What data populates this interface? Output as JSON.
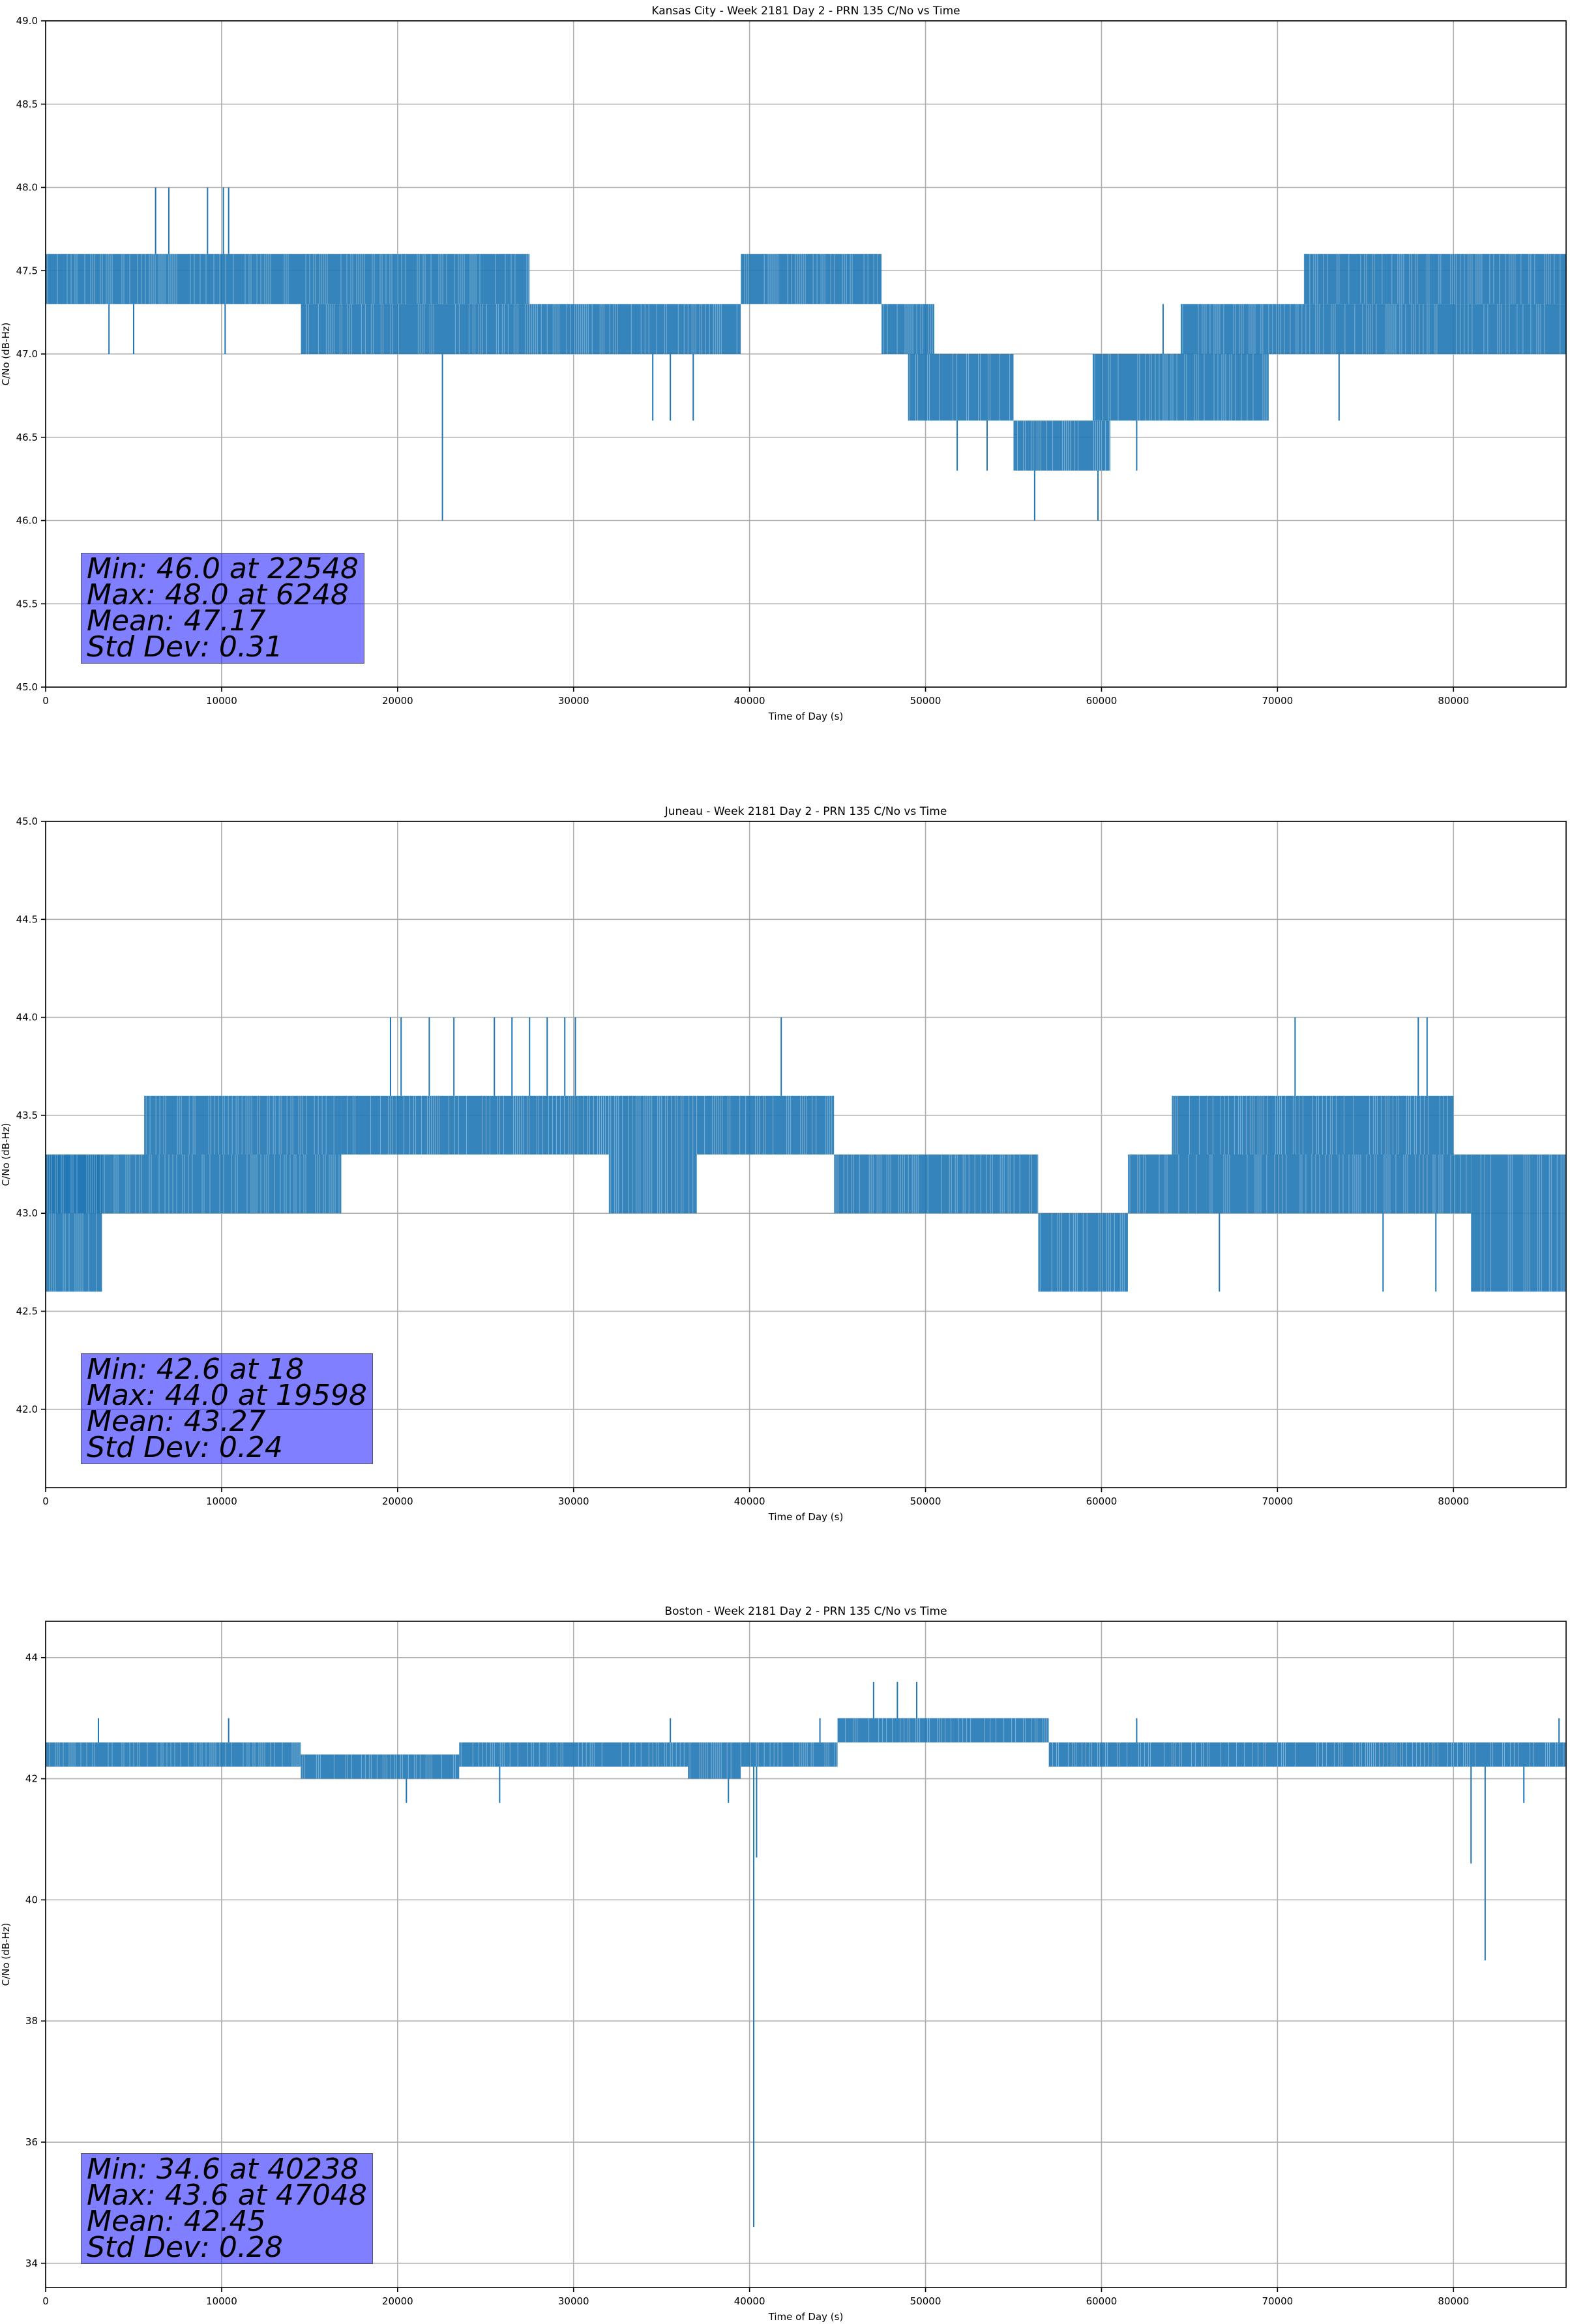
{
  "chart_data": [
    {
      "type": "line",
      "title": "Kansas City - Week 2181 Day 2 - PRN 135 C/No vs Time",
      "xlabel": "Time of Day (s)",
      "ylabel": "C/No (dB-Hz)",
      "xlim": [
        0,
        86400
      ],
      "ylim": [
        45.0,
        49.0
      ],
      "xticks": [
        0,
        10000,
        20000,
        30000,
        40000,
        50000,
        60000,
        70000,
        80000
      ],
      "yticks": [
        "45.0",
        "45.5",
        "46.0",
        "46.5",
        "47.0",
        "47.5",
        "48.0",
        "48.5",
        "49.0"
      ],
      "grid": true,
      "series_color": "#1f77b4",
      "bands": [
        {
          "x": [
            0,
            27500
          ],
          "low": 47.3,
          "high": 47.6
        },
        {
          "x": [
            14500,
            27500
          ],
          "low": 47.0,
          "high": 47.3
        },
        {
          "x": [
            27500,
            39500
          ],
          "low": 47.0,
          "high": 47.3
        },
        {
          "x": [
            39500,
            47500
          ],
          "low": 47.3,
          "high": 47.6
        },
        {
          "x": [
            47500,
            50500
          ],
          "low": 47.0,
          "high": 47.3
        },
        {
          "x": [
            49000,
            55000
          ],
          "low": 46.6,
          "high": 47.0
        },
        {
          "x": [
            55000,
            60500
          ],
          "low": 46.3,
          "high": 46.6
        },
        {
          "x": [
            59500,
            69500
          ],
          "low": 46.6,
          "high": 47.0
        },
        {
          "x": [
            64500,
            86400
          ],
          "low": 47.0,
          "high": 47.3
        },
        {
          "x": [
            71500,
            86400
          ],
          "low": 47.3,
          "high": 47.6
        }
      ],
      "spikes": [
        {
          "x": 6248,
          "y": 48.0
        },
        {
          "x": 7000,
          "y": 48.0
        },
        {
          "x": 9200,
          "y": 48.0
        },
        {
          "x": 10100,
          "y": 48.0
        },
        {
          "x": 10400,
          "y": 48.0
        },
        {
          "x": 3600,
          "y": 47.0
        },
        {
          "x": 5000,
          "y": 47.0
        },
        {
          "x": 10200,
          "y": 47.0
        },
        {
          "x": 22548,
          "y": 46.0
        },
        {
          "x": 34500,
          "y": 46.6
        },
        {
          "x": 35500,
          "y": 46.6
        },
        {
          "x": 36800,
          "y": 46.6
        },
        {
          "x": 51800,
          "y": 46.3
        },
        {
          "x": 53500,
          "y": 46.3
        },
        {
          "x": 56200,
          "y": 46.0
        },
        {
          "x": 59800,
          "y": 46.0
        },
        {
          "x": 62000,
          "y": 46.3
        },
        {
          "x": 63500,
          "y": 47.3
        },
        {
          "x": 73500,
          "y": 46.6
        }
      ],
      "stats": {
        "min": "Min: 46.0 at 22548",
        "max": "Max: 48.0 at 6248",
        "mean": "Mean: 47.17",
        "std": "Std Dev: 0.31"
      }
    },
    {
      "type": "line",
      "title": "Juneau - Week 2181 Day 2 - PRN 135 C/No vs Time",
      "xlabel": "Time of Day (s)",
      "ylabel": "C/No (dB-Hz)",
      "xlim": [
        0,
        86400
      ],
      "ylim": [
        41.6,
        45.0
      ],
      "xticks": [
        0,
        10000,
        20000,
        30000,
        40000,
        50000,
        60000,
        70000,
        80000
      ],
      "yticks": [
        "42.0",
        "42.5",
        "43.0",
        "43.5",
        "44.0",
        "44.5",
        "45.0"
      ],
      "grid": true,
      "series_color": "#1f77b4",
      "bands": [
        {
          "x": [
            0,
            3200
          ],
          "low": 42.6,
          "high": 43.3
        },
        {
          "x": [
            0,
            16800
          ],
          "low": 43.0,
          "high": 43.3
        },
        {
          "x": [
            5600,
            16800
          ],
          "low": 43.3,
          "high": 43.6
        },
        {
          "x": [
            16800,
            32000
          ],
          "low": 43.3,
          "high": 43.6
        },
        {
          "x": [
            32000,
            37000
          ],
          "low": 43.0,
          "high": 43.6
        },
        {
          "x": [
            37000,
            44800
          ],
          "low": 43.3,
          "high": 43.6
        },
        {
          "x": [
            44800,
            56400
          ],
          "low": 43.0,
          "high": 43.3
        },
        {
          "x": [
            56400,
            61500
          ],
          "low": 42.6,
          "high": 43.0
        },
        {
          "x": [
            61500,
            81000
          ],
          "low": 43.0,
          "high": 43.3
        },
        {
          "x": [
            64000,
            80000
          ],
          "low": 43.3,
          "high": 43.6
        },
        {
          "x": [
            81000,
            86400
          ],
          "low": 42.6,
          "high": 43.3
        }
      ],
      "spikes": [
        {
          "x": 19598,
          "y": 44.0
        },
        {
          "x": 20200,
          "y": 44.0
        },
        {
          "x": 21800,
          "y": 44.0
        },
        {
          "x": 23200,
          "y": 44.0
        },
        {
          "x": 25500,
          "y": 44.0
        },
        {
          "x": 26500,
          "y": 44.0
        },
        {
          "x": 27500,
          "y": 44.0
        },
        {
          "x": 28500,
          "y": 44.0
        },
        {
          "x": 29500,
          "y": 44.0
        },
        {
          "x": 30100,
          "y": 44.0
        },
        {
          "x": 41800,
          "y": 44.0
        },
        {
          "x": 71000,
          "y": 44.0
        },
        {
          "x": 78000,
          "y": 44.0
        },
        {
          "x": 78500,
          "y": 44.0
        },
        {
          "x": 18,
          "y": 42.6
        },
        {
          "x": 66700,
          "y": 42.6
        },
        {
          "x": 76000,
          "y": 42.6
        },
        {
          "x": 79000,
          "y": 42.6
        }
      ],
      "stats": {
        "min": "Min: 42.6 at 18",
        "max": "Max: 44.0 at 19598",
        "mean": "Mean: 43.27",
        "std": "Std Dev: 0.24"
      }
    },
    {
      "type": "line",
      "title": "Boston - Week 2181 Day 2 - PRN 135 C/No vs Time",
      "xlabel": "Time of Day (s)",
      "ylabel": "C/No (dB-Hz)",
      "xlim": [
        0,
        86400
      ],
      "ylim": [
        33.6,
        44.6
      ],
      "xticks": [
        0,
        10000,
        20000,
        30000,
        40000,
        50000,
        60000,
        70000,
        80000
      ],
      "yticks": [
        "34",
        "36",
        "38",
        "40",
        "42",
        "44"
      ],
      "grid": true,
      "series_color": "#1f77b4",
      "bands": [
        {
          "x": [
            0,
            14500
          ],
          "low": 42.2,
          "high": 42.6
        },
        {
          "x": [
            14500,
            23500
          ],
          "low": 42.0,
          "high": 42.4
        },
        {
          "x": [
            23500,
            36500
          ],
          "low": 42.2,
          "high": 42.6
        },
        {
          "x": [
            36500,
            39500
          ],
          "low": 42.0,
          "high": 42.6
        },
        {
          "x": [
            39500,
            45000
          ],
          "low": 42.2,
          "high": 42.6
        },
        {
          "x": [
            45000,
            57000
          ],
          "low": 42.6,
          "high": 43.0
        },
        {
          "x": [
            57000,
            86400
          ],
          "low": 42.2,
          "high": 42.6
        }
      ],
      "spikes": [
        {
          "x": 40238,
          "y": 34.6
        },
        {
          "x": 40400,
          "y": 40.7
        },
        {
          "x": 47048,
          "y": 43.6
        },
        {
          "x": 48400,
          "y": 43.6
        },
        {
          "x": 49500,
          "y": 43.6
        },
        {
          "x": 81000,
          "y": 40.6
        },
        {
          "x": 81800,
          "y": 39.0
        },
        {
          "x": 84000,
          "y": 41.6
        },
        {
          "x": 20500,
          "y": 41.6
        },
        {
          "x": 25800,
          "y": 41.6
        },
        {
          "x": 38800,
          "y": 41.6
        },
        {
          "x": 3000,
          "y": 43.0
        },
        {
          "x": 10400,
          "y": 43.0
        },
        {
          "x": 35500,
          "y": 43.0
        },
        {
          "x": 44000,
          "y": 43.0
        },
        {
          "x": 62000,
          "y": 43.0
        },
        {
          "x": 86000,
          "y": 43.0
        }
      ],
      "stats": {
        "min": "Min: 34.6 at 40238",
        "max": "Max: 43.6 at 47048",
        "mean": "Mean: 42.45",
        "std": "Std Dev: 0.28"
      }
    }
  ]
}
